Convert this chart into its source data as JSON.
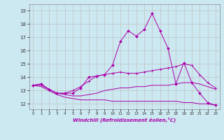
{
  "xlabel": "Windchill (Refroidissement éolien,°C)",
  "bg_color": "#cce8f0",
  "line_color": "#aa00aa",
  "grid_color": "#bbbbbb",
  "x_ticks": [
    0,
    1,
    2,
    3,
    4,
    5,
    6,
    7,
    8,
    9,
    10,
    11,
    12,
    13,
    14,
    15,
    16,
    17,
    18,
    19,
    20,
    21,
    22,
    23
  ],
  "y_ticks": [
    12,
    13,
    14,
    15,
    16,
    17,
    18,
    19
  ],
  "ylim": [
    11.6,
    19.5
  ],
  "xlim": [
    -0.5,
    23.5
  ],
  "series": {
    "line1_x": [
      0,
      1,
      2,
      3,
      4,
      5,
      6,
      7,
      8,
      9,
      10,
      11,
      12,
      13,
      14,
      15,
      16,
      17,
      18,
      19,
      20,
      21,
      22,
      23
    ],
    "line1_y": [
      13.4,
      13.5,
      13.1,
      12.8,
      12.8,
      12.8,
      13.2,
      14.0,
      14.1,
      14.2,
      14.9,
      16.7,
      17.5,
      17.1,
      17.6,
      18.8,
      17.5,
      16.2,
      13.5,
      15.1,
      13.6,
      12.8,
      12.1,
      11.9
    ],
    "line2_x": [
      0,
      1,
      2,
      3,
      4,
      5,
      6,
      7,
      8,
      9,
      10,
      11,
      12,
      13,
      14,
      15,
      16,
      17,
      18,
      19,
      20,
      21,
      22,
      23
    ],
    "line2_y": [
      13.4,
      13.5,
      13.1,
      12.8,
      12.8,
      13.0,
      13.3,
      13.7,
      14.1,
      14.2,
      14.3,
      14.4,
      14.3,
      14.3,
      14.4,
      14.5,
      14.6,
      14.7,
      14.8,
      15.0,
      14.9,
      14.2,
      13.6,
      13.2
    ],
    "line3_x": [
      0,
      1,
      2,
      3,
      4,
      5,
      6,
      7,
      8,
      9,
      10,
      11,
      12,
      13,
      14,
      15,
      16,
      17,
      18,
      19,
      20,
      21,
      22,
      23
    ],
    "line3_y": [
      13.4,
      13.4,
      13.1,
      12.8,
      12.7,
      12.6,
      12.6,
      12.7,
      12.8,
      13.0,
      13.1,
      13.2,
      13.2,
      13.3,
      13.3,
      13.4,
      13.4,
      13.4,
      13.5,
      13.6,
      13.6,
      13.5,
      13.3,
      13.1
    ],
    "line4_x": [
      0,
      1,
      2,
      3,
      4,
      5,
      6,
      7,
      8,
      9,
      10,
      11,
      12,
      13,
      14,
      15,
      16,
      17,
      18,
      19,
      20,
      21,
      22,
      23
    ],
    "line4_y": [
      13.4,
      13.3,
      13.0,
      12.7,
      12.5,
      12.4,
      12.3,
      12.3,
      12.3,
      12.3,
      12.2,
      12.2,
      12.2,
      12.2,
      12.2,
      12.2,
      12.2,
      12.2,
      12.2,
      12.1,
      12.1,
      12.0,
      12.0,
      11.9
    ]
  }
}
